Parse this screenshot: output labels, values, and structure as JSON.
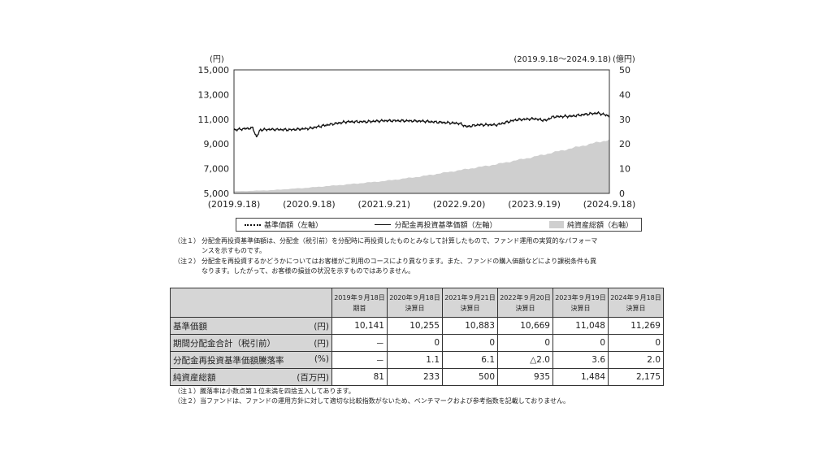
{
  "chart_data": {
    "type": "line",
    "period": "(2019.9.18～2024.9.18)",
    "left_unit": "(円)",
    "right_unit": "(億円)",
    "left_ticks": [
      "15,000",
      "13,000",
      "11,000",
      "9,000",
      "7,000",
      "5,000"
    ],
    "left_tick_values": [
      15000,
      13000,
      11000,
      9000,
      7000,
      5000
    ],
    "right_ticks": [
      "50",
      "40",
      "30",
      "20",
      "10",
      "0"
    ],
    "right_tick_values": [
      50,
      40,
      30,
      20,
      10,
      0
    ],
    "x_ticks": [
      "(2019.9.18)",
      "(2020.9.18)",
      "(2021.9.21)",
      "(2022.9.20)",
      "(2023.9.19)",
      "(2024.9.18)"
    ],
    "x_tick_positions": [
      0,
      1,
      2,
      3,
      4,
      5
    ],
    "ylim_left": [
      5000,
      15000
    ],
    "ylim_right": [
      0,
      50
    ],
    "legend": [
      "基準価額（左軸）",
      "分配金再投資基準価額（左軸）",
      "純資産総額（右軸）"
    ],
    "series": [
      {
        "name": "分配金再投資基準価額（左軸）",
        "x": [
          0,
          0.25,
          0.3,
          0.35,
          0.5,
          0.75,
          1.0,
          1.25,
          1.5,
          1.75,
          2.0,
          2.25,
          2.5,
          2.75,
          3.0,
          3.1,
          3.25,
          3.5,
          3.75,
          4.0,
          4.15,
          4.25,
          4.5,
          4.75,
          4.85,
          5.0
        ],
        "values": [
          10141,
          10300,
          9550,
          10150,
          10180,
          10150,
          10255,
          10550,
          10800,
          10800,
          10883,
          10880,
          10850,
          10750,
          10669,
          10400,
          10550,
          10550,
          10950,
          11048,
          10900,
          11200,
          11250,
          11450,
          11500,
          11269
        ]
      },
      {
        "name": "純資産総額（右軸）",
        "x": [
          0,
          0.5,
          1.0,
          1.5,
          2.0,
          2.5,
          3.0,
          3.5,
          4.0,
          4.5,
          5.0
        ],
        "values": [
          0.81,
          1.3,
          2.33,
          3.6,
          5.0,
          6.9,
          9.35,
          11.8,
          14.84,
          18.3,
          21.75
        ]
      }
    ]
  },
  "legend": {
    "nav": "基準価額（左軸）",
    "reinvest": "分配金再投資基準価額（左軸）",
    "assets": "純資産総額（右軸）"
  },
  "chart_notes": [
    {
      "label": "（注１）",
      "text": "分配金再投資基準価額は、分配金（税引前）を分配時に再投資したものとみなして計算したもので、ファンド運用の実質的なパフォーマ",
      "cont": "ンスを示すものです。"
    },
    {
      "label": "（注２）",
      "text": "分配金を再投資するかどうかについてはお客様がご利用のコースにより異なります。また、ファンドの購入価額などにより課税条件も異",
      "cont": "なります。したがって、お客様の損益の状況を示すものではありません。"
    }
  ],
  "table": {
    "headers": [
      {
        "date": "2019年９月18日",
        "sub": "期首"
      },
      {
        "date": "2020年９月18日",
        "sub": "決算日"
      },
      {
        "date": "2021年９月21日",
        "sub": "決算日"
      },
      {
        "date": "2022年９月20日",
        "sub": "決算日"
      },
      {
        "date": "2023年９月19日",
        "sub": "決算日"
      },
      {
        "date": "2024年９月18日",
        "sub": "決算日"
      }
    ],
    "rows": [
      {
        "label": "基準価額",
        "unit": "(円)",
        "values": [
          "10,141",
          "10,255",
          "10,883",
          "10,669",
          "11,048",
          "11,269"
        ]
      },
      {
        "label": "期間分配金合計（税引前）",
        "unit": "(円)",
        "values": [
          "－",
          "0",
          "0",
          "0",
          "0",
          "0"
        ]
      },
      {
        "label": "分配金再投資基準価額騰落率",
        "unit": "(%)",
        "values": [
          "－",
          "1.1",
          "6.1",
          "△2.0",
          "3.6",
          "2.0"
        ]
      },
      {
        "label": "純資産総額",
        "unit": "(百万円)",
        "values": [
          "81",
          "233",
          "500",
          "935",
          "1,484",
          "2,175"
        ]
      }
    ]
  },
  "table_notes": [
    {
      "label": "（注１）",
      "text": "騰落率は小数点第１位未満を四捨五入してあります。"
    },
    {
      "label": "（注２）",
      "text": "当ファンドは、ファンドの運用方針に対して適切な比較指数がないため、ベンチマークおよび参考指数を記載しておりません。"
    }
  ]
}
